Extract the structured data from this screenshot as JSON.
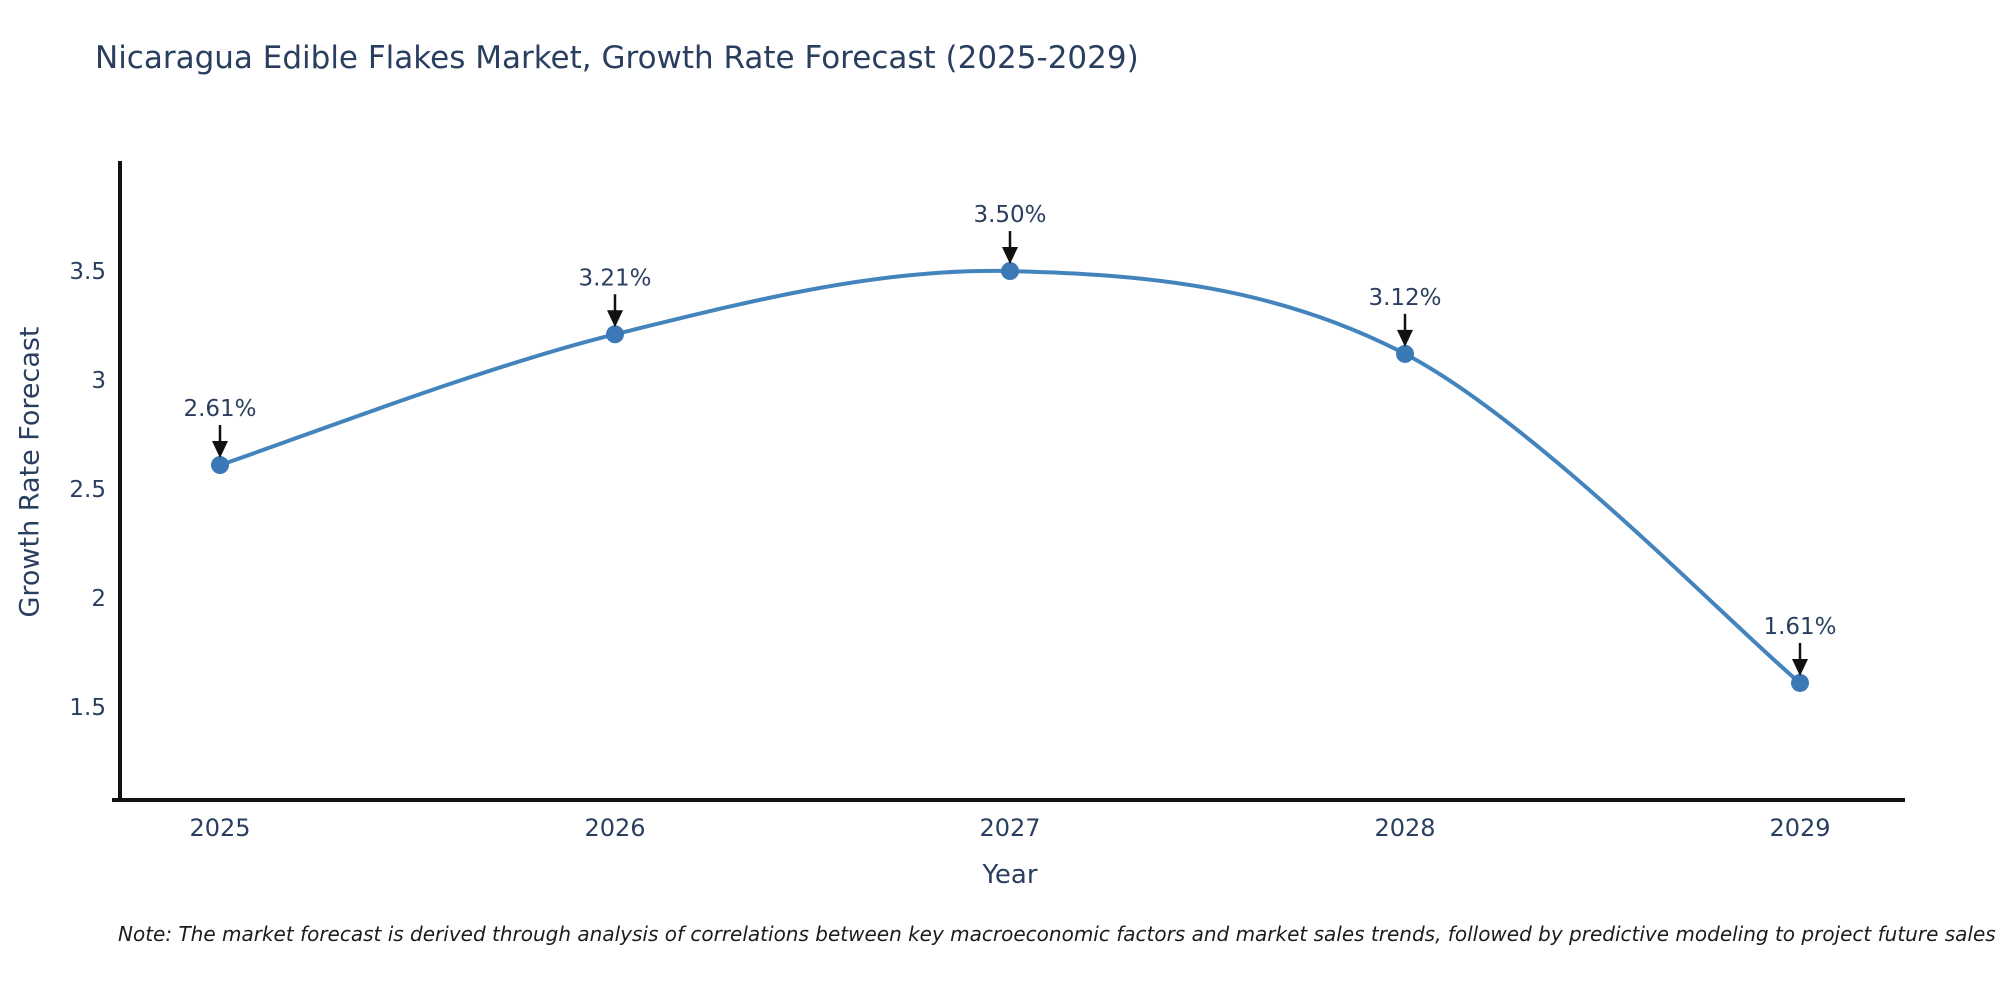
{
  "chart_data": {
    "type": "line",
    "title": "Nicaragua Edible Flakes Market, Growth Rate Forecast (2025-2029)",
    "xlabel": "Year",
    "ylabel": "Growth Rate Forecast",
    "categories": [
      "2025",
      "2026",
      "2027",
      "2028",
      "2029"
    ],
    "series": [
      {
        "name": "Growth Rate Forecast",
        "values": [
          2.61,
          3.21,
          3.5,
          3.12,
          1.61
        ],
        "point_labels": [
          "2.61%",
          "3.21%",
          "3.50%",
          "3.12%",
          "1.61%"
        ]
      }
    ],
    "ytick_labels": [
      "1.5",
      "2",
      "2.5",
      "3",
      "3.5"
    ],
    "ytick_values": [
      1.5,
      2,
      2.5,
      3,
      3.5
    ],
    "ylim": [
      1.073,
      4.005
    ],
    "grid": false,
    "legend": false,
    "line_shape": "spline",
    "annotation_arrows": true,
    "colors": {
      "line": "#4484bd",
      "marker": "#3a79b5",
      "axis_line": "#111111",
      "axis_text": "#2a3f5f",
      "annotation_text": "#2a3f5f",
      "arrow": "#111111"
    }
  },
  "footnote": "Note: The market forecast is derived through analysis of correlations between key macroeconomic factors and market sales trends, followed by predictive modeling to project future sales"
}
